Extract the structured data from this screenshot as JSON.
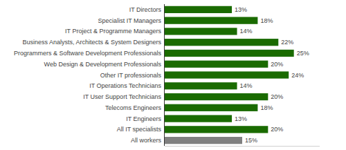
{
  "chart_data": {
    "type": "bar",
    "orientation": "horizontal",
    "categories": [
      "All workers",
      "All IT specialists",
      "IT Engineers",
      "Telecoms Engineers",
      "IT User Support Technicians",
      "IT Operations Technicians",
      "Other IT professionals",
      "Web Design & Development Professionals",
      "Programmers & Software Development Professionals",
      "Business Analysts, Architects & System Designers",
      "IT Project & Programme Managers",
      "Specialist IT Managers",
      "IT Directors"
    ],
    "values": [
      15,
      20,
      13,
      18,
      20,
      14,
      24,
      20,
      25,
      22,
      14,
      18,
      13
    ],
    "value_labels": [
      "15%",
      "20%",
      "13%",
      "18%",
      "20%",
      "14%",
      "24%",
      "20%",
      "25%",
      "22%",
      "14%",
      "18%",
      "13%"
    ],
    "colors": [
      "#808080",
      "#1a6b00",
      "#1a6b00",
      "#1a6b00",
      "#1a6b00",
      "#1a6b00",
      "#1a6b00",
      "#1a6b00",
      "#1a6b00",
      "#1a6b00",
      "#1a6b00",
      "#1a6b00",
      "#1a6b00"
    ],
    "xlim": [
      0,
      30
    ],
    "data_labels": true,
    "tick_labels": "y"
  }
}
